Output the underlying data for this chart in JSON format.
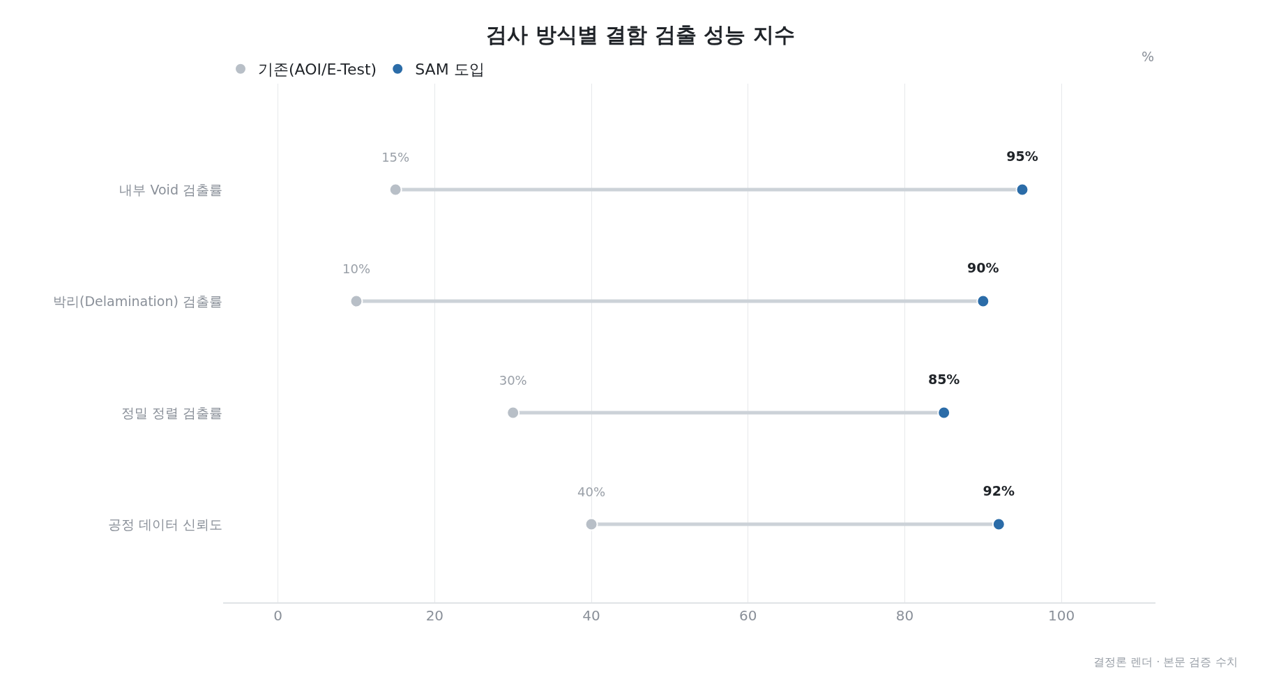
{
  "chart_data": {
    "type": "scatter",
    "orientation": "horizontal",
    "title": "검사 방식별 결함 검출 성능 지수",
    "xlabel": "%",
    "categories": [
      "내부 Void 검출률",
      "박리(Delamination) 검출률",
      "정밀 정렬 검출률",
      "공정 데이터 신뢰도"
    ],
    "series": [
      {
        "name": "기존(AOI/E-Test)",
        "color": "#b8bfc7",
        "values": [
          15,
          10,
          30,
          40
        ],
        "value_labels": [
          "15%",
          "10%",
          "30%",
          "40%"
        ]
      },
      {
        "name": "SAM 도입",
        "color": "#2b6ca8",
        "values": [
          95,
          90,
          85,
          92
        ],
        "value_labels": [
          "95%",
          "90%",
          "85%",
          "92%"
        ]
      }
    ],
    "xlim": [
      -7,
      112
    ],
    "xticks": [
      0,
      20,
      40,
      60,
      80,
      100
    ],
    "grid": "x",
    "legend": "top left",
    "marker": "circle",
    "annotations": [
      "결정론 렌더 · 본문 검증 수치"
    ]
  }
}
